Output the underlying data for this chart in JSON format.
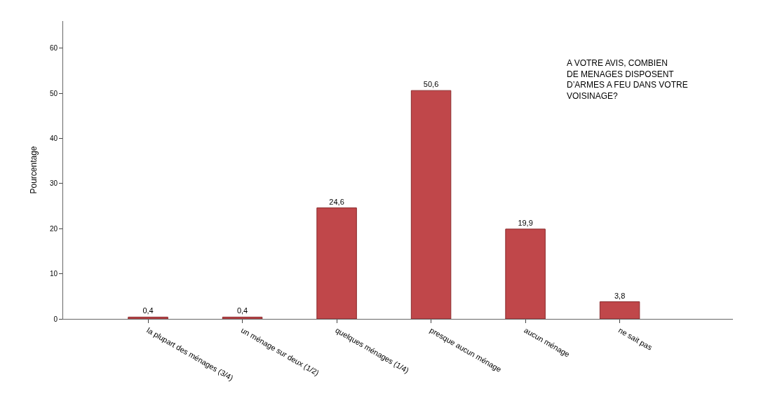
{
  "chart_data": {
    "type": "bar",
    "ylabel": "Pourcentage",
    "categories": [
      "la plupart des ménages (3/4)",
      "un ménage sur deux (1/2)",
      "quelques ménages (1/4)",
      "presque aucun ménage",
      "aucun ménage",
      "ne sait pas"
    ],
    "values": [
      0.4,
      0.4,
      24.6,
      50.6,
      19.9,
      3.8
    ],
    "value_labels": [
      "0,4",
      "0,4",
      "24,6",
      "50,6",
      "19,9",
      "3,8"
    ],
    "color": "#c0474a",
    "ylim": [
      0,
      66
    ],
    "yticks": [
      0,
      10,
      20,
      30,
      40,
      50,
      60
    ],
    "annotations": [
      "A VOTRE AVIS, COMBIEN\nDE MENAGES DISPOSENT\nD’ARMES A FEU DANS VOTRE\nVOISINAGE?"
    ]
  }
}
